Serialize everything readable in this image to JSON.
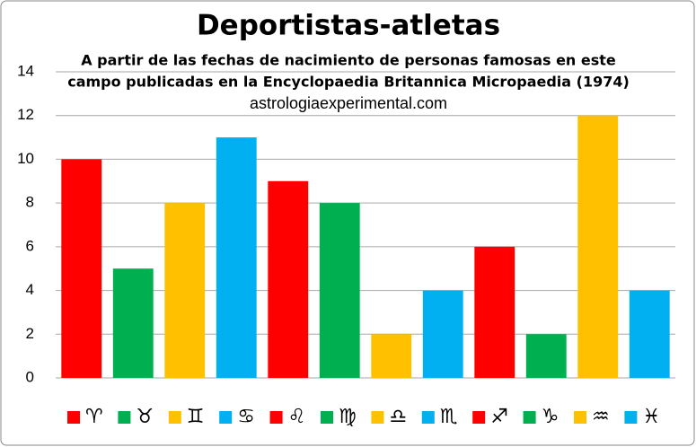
{
  "chart_data": {
    "type": "bar",
    "title": "Deportistas-atletas",
    "subtitle": [
      "A partir de las fechas de nacimiento de personas famosas en este",
      "campo publicadas en la Encyclopaedia Britannica Micropaedia (1974)"
    ],
    "source": "astrologiaexperimental.com",
    "categories": [
      "♈",
      "♉",
      "♊",
      "♋",
      "♌",
      "♍",
      "♎",
      "♏",
      "♐",
      "♑",
      "♒",
      "♓"
    ],
    "values": [
      10,
      5,
      8,
      11,
      9,
      8,
      2,
      4,
      6,
      2,
      12,
      4
    ],
    "colors": [
      "#ff0000",
      "#00b050",
      "#ffc000",
      "#00b0f0",
      "#ff0000",
      "#00b050",
      "#ffc000",
      "#00b0f0",
      "#ff0000",
      "#00b050",
      "#ffc000",
      "#00b0f0"
    ],
    "ylim": [
      0,
      14
    ],
    "yticks": [
      0,
      2,
      4,
      6,
      8,
      10,
      12,
      14
    ],
    "grid": true,
    "legend": "bottom"
  }
}
